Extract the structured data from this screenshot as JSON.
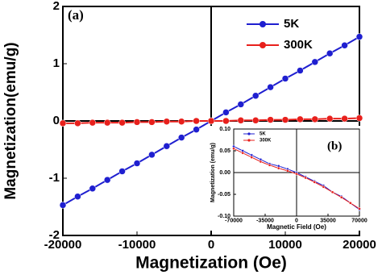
{
  "chart_data": [
    {
      "type": "line",
      "title": "(a)",
      "x_label": "Magnetization (Oe)",
      "y_label": "Magnetization(emu/g)",
      "x": [
        -20000,
        -18000,
        -16000,
        -14000,
        -12000,
        -10000,
        -8000,
        -6000,
        -4000,
        -2000,
        0,
        2000,
        4000,
        6000,
        8000,
        10000,
        12000,
        14000,
        16000,
        18000,
        20000
      ],
      "series": [
        {
          "name": "5K",
          "color": "#1f1fd0",
          "values": [
            -1.47,
            -1.32,
            -1.18,
            -1.03,
            -0.88,
            -0.74,
            -0.59,
            -0.44,
            -0.29,
            -0.15,
            0,
            0.15,
            0.29,
            0.44,
            0.59,
            0.74,
            0.88,
            1.03,
            1.18,
            1.32,
            1.47
          ]
        },
        {
          "name": "300K",
          "color": "#e8201c",
          "values": [
            -0.04,
            -0.04,
            -0.03,
            -0.03,
            -0.03,
            -0.02,
            -0.02,
            -0.01,
            -0.01,
            0,
            0,
            0,
            0.01,
            0.01,
            0.02,
            0.02,
            0.03,
            0.03,
            0.04,
            0.04,
            0.05
          ]
        }
      ],
      "xlim": [
        -20000,
        20000
      ],
      "xticks": [
        -20000,
        -10000,
        0,
        10000,
        20000
      ],
      "ylim": [
        -2,
        2
      ],
      "yticks": [
        -2,
        -1,
        0,
        1,
        2
      ],
      "legend": "upper right"
    },
    {
      "type": "line",
      "title": "(b)",
      "x_label": "Magnetic Field (Oe)",
      "y_label": "Magnetization (emu/g)",
      "x": [
        -70000,
        -60000,
        -50000,
        -40000,
        -30000,
        -20000,
        -10000,
        0,
        10000,
        20000,
        30000,
        40000,
        50000,
        60000,
        70000
      ],
      "series": [
        {
          "name": "5K",
          "color": "#1f1fd0",
          "values": [
            0.06,
            0.05,
            0.04,
            0.03,
            0.02,
            0.015,
            0.008,
            0,
            -0.01,
            -0.02,
            -0.03,
            -0.045,
            -0.055,
            -0.07,
            -0.085
          ]
        },
        {
          "name": "300K",
          "color": "#e8201c",
          "values": [
            0.055,
            0.045,
            0.035,
            0.025,
            0.017,
            0.01,
            0.004,
            -0.003,
            -0.012,
            -0.022,
            -0.033,
            -0.045,
            -0.057,
            -0.07,
            -0.083
          ]
        }
      ],
      "xlim": [
        -70000,
        70000
      ],
      "xticks": [
        -70000,
        -35000,
        0,
        35000,
        70000
      ],
      "ylim": [
        -0.1,
        0.1
      ],
      "yticks": [
        {
          "value": -0.1,
          "label": "-0.10"
        },
        {
          "value": -0.05,
          "label": "-0.05"
        },
        {
          "value": 0,
          "label": "0.00"
        },
        {
          "value": 0.05,
          "label": "0.05"
        },
        {
          "value": 0.1,
          "label": "0.10"
        }
      ],
      "legend": "upper left"
    }
  ]
}
